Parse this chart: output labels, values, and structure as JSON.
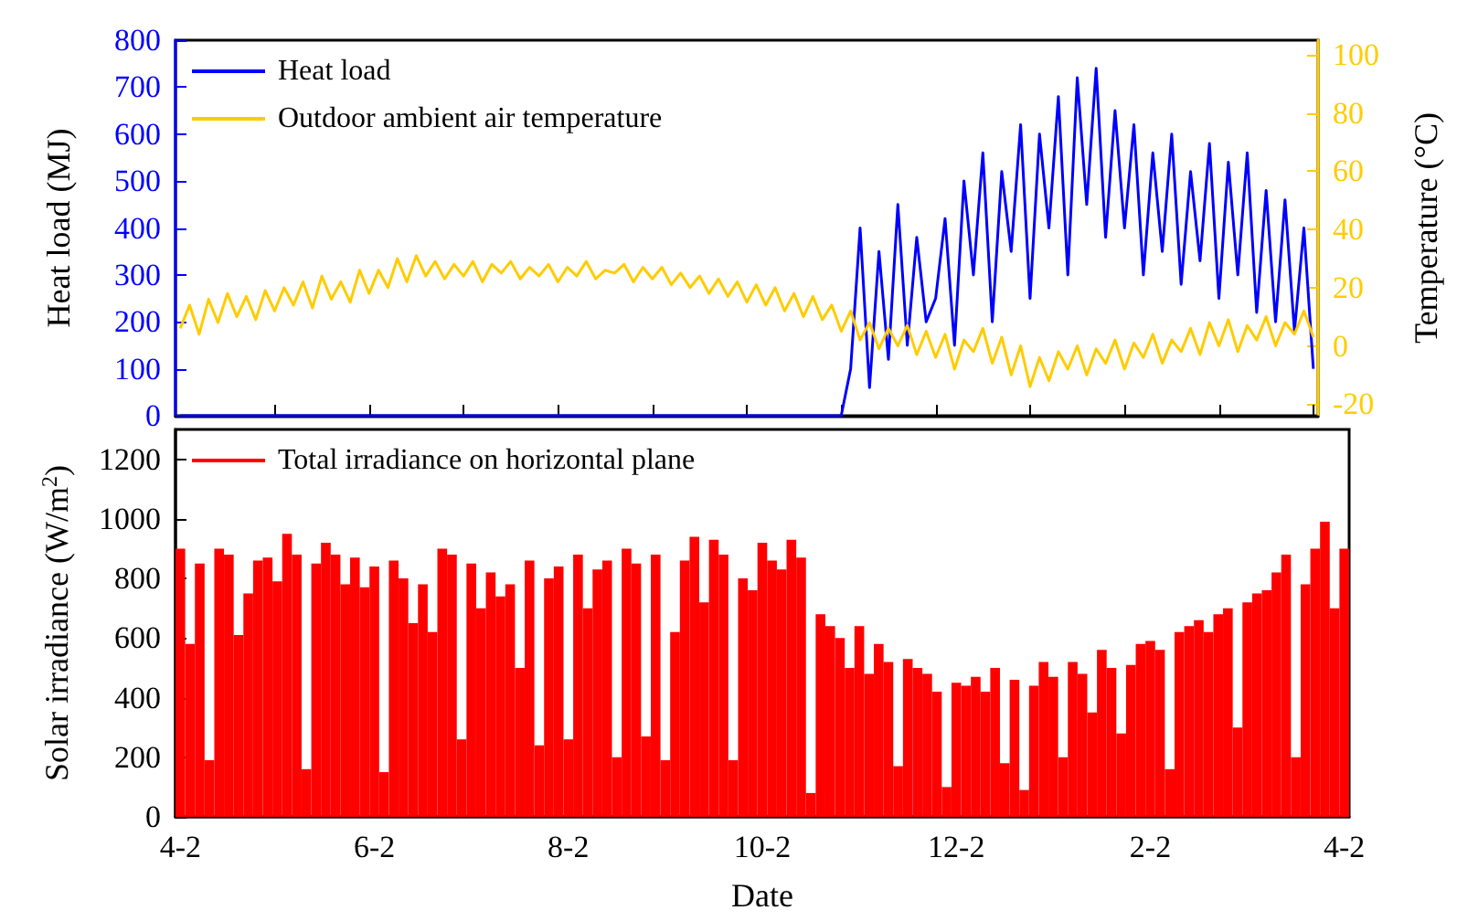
{
  "chart_data": [
    {
      "type": "line",
      "ylabel": "Heat load (MJ)",
      "y2label": "Temperature (°C)",
      "ylim": [
        0,
        800
      ],
      "yticks": [
        0,
        100,
        200,
        300,
        400,
        500,
        600,
        700,
        800
      ],
      "y2lim": [
        -24,
        105
      ],
      "y2ticks": [
        -20,
        0,
        20,
        40,
        60,
        80,
        100
      ],
      "legend": "top left",
      "categories": [
        null,
        null,
        null,
        null,
        null,
        null,
        null,
        null,
        null,
        null,
        null,
        null,
        null,
        null,
        null,
        null,
        null,
        null,
        null,
        null,
        null,
        null,
        null,
        null,
        null,
        null,
        null,
        null,
        null,
        null,
        null,
        null,
        null,
        null,
        null,
        null,
        null,
        null,
        null,
        null,
        null,
        null,
        null,
        null,
        null,
        null,
        null,
        null,
        null,
        null,
        null,
        null,
        null,
        null,
        null,
        null,
        null,
        null,
        null,
        null,
        null,
        null,
        null,
        null,
        null,
        null,
        null,
        null,
        null,
        null,
        null,
        null,
        null,
        null,
        null,
        null,
        null,
        null,
        null,
        null,
        null,
        null,
        null,
        null,
        null,
        null,
        null,
        null,
        null,
        null,
        null,
        null,
        null,
        null,
        null,
        null,
        null,
        null,
        null,
        null,
        null,
        null,
        null,
        null,
        null,
        null,
        null,
        null,
        null,
        null,
        null,
        null,
        null,
        null,
        null,
        null,
        null,
        null,
        null,
        null,
        null
      ],
      "series": [
        {
          "name": "Heat load",
          "color": "#0000ff",
          "values": [
            0,
            0,
            0,
            0,
            0,
            0,
            0,
            0,
            0,
            0,
            0,
            0,
            0,
            0,
            0,
            0,
            0,
            0,
            0,
            0,
            0,
            0,
            0,
            0,
            0,
            0,
            0,
            0,
            0,
            0,
            0,
            0,
            0,
            0,
            0,
            0,
            0,
            0,
            0,
            0,
            0,
            0,
            0,
            0,
            0,
            0,
            0,
            0,
            0,
            0,
            0,
            0,
            0,
            0,
            0,
            0,
            0,
            0,
            0,
            0,
            0,
            0,
            0,
            0,
            0,
            0,
            0,
            0,
            0,
            0,
            0,
            100,
            400,
            60,
            350,
            120,
            450,
            150,
            380,
            200,
            250,
            420,
            150,
            500,
            300,
            560,
            200,
            520,
            350,
            620,
            250,
            600,
            400,
            680,
            300,
            720,
            450,
            740,
            380,
            650,
            400,
            620,
            300,
            560,
            350,
            600,
            280,
            520,
            330,
            580,
            250,
            540,
            300,
            560,
            220,
            480,
            200,
            460,
            180,
            400,
            100
          ]
        },
        {
          "name": "Outdoor ambient air temperature",
          "color": "#ffcc00",
          "axis": "y2",
          "values": [
            6,
            14,
            4,
            16,
            8,
            18,
            10,
            17,
            9,
            19,
            12,
            20,
            14,
            22,
            13,
            24,
            16,
            22,
            15,
            26,
            18,
            26,
            20,
            30,
            22,
            31,
            24,
            29,
            23,
            28,
            24,
            29,
            22,
            28,
            25,
            29,
            23,
            27,
            24,
            28,
            22,
            27,
            24,
            29,
            23,
            26,
            25,
            28,
            22,
            27,
            23,
            27,
            21,
            25,
            20,
            24,
            18,
            23,
            17,
            22,
            15,
            21,
            14,
            20,
            12,
            18,
            10,
            17,
            9,
            14,
            5,
            12,
            2,
            8,
            -1,
            6,
            0,
            7,
            -3,
            5,
            -4,
            4,
            -8,
            2,
            -2,
            6,
            -6,
            3,
            -10,
            0,
            -14,
            -4,
            -12,
            -2,
            -8,
            0,
            -10,
            -1,
            -6,
            2,
            -8,
            1,
            -4,
            4,
            -6,
            2,
            -2,
            6,
            -3,
            8,
            0,
            9,
            -2,
            7,
            2,
            10,
            0,
            8,
            4,
            12,
            3
          ]
        }
      ]
    },
    {
      "type": "bar",
      "xlabel": "Date",
      "ylabel": "Solar irradiance (W/m$^{2}$)",
      "ylim": [
        0,
        1300
      ],
      "yticks": [
        0,
        200,
        400,
        600,
        800,
        1000,
        1200
      ],
      "legend": "top left",
      "categories": [
        "4-2",
        null,
        null,
        null,
        null,
        null,
        null,
        null,
        null,
        null,
        null,
        null,
        null,
        null,
        null,
        null,
        null,
        null,
        null,
        null,
        "6-2",
        null,
        null,
        null,
        null,
        null,
        null,
        null,
        null,
        null,
        null,
        null,
        null,
        null,
        null,
        null,
        null,
        null,
        null,
        null,
        "8-2",
        null,
        null,
        null,
        null,
        null,
        null,
        null,
        null,
        null,
        null,
        null,
        null,
        null,
        null,
        null,
        null,
        null,
        null,
        null,
        "10-2",
        null,
        null,
        null,
        null,
        null,
        null,
        null,
        null,
        null,
        null,
        null,
        null,
        null,
        null,
        null,
        null,
        null,
        null,
        null,
        "12-2",
        null,
        null,
        null,
        null,
        null,
        null,
        null,
        null,
        null,
        null,
        null,
        null,
        null,
        null,
        null,
        null,
        null,
        null,
        null,
        "2-2",
        null,
        null,
        null,
        null,
        null,
        null,
        null,
        null,
        null,
        null,
        null,
        null,
        null,
        null,
        null,
        null,
        null,
        null,
        null,
        "4-2"
      ],
      "series": [
        {
          "name": "Total irradiance on horizontal plane",
          "color": "#ff0000",
          "values": [
            900,
            580,
            850,
            190,
            900,
            880,
            610,
            750,
            860,
            870,
            790,
            950,
            880,
            160,
            850,
            920,
            880,
            780,
            870,
            770,
            840,
            150,
            860,
            800,
            650,
            780,
            620,
            900,
            880,
            260,
            850,
            700,
            820,
            740,
            780,
            500,
            860,
            240,
            800,
            840,
            260,
            880,
            700,
            830,
            860,
            200,
            900,
            850,
            270,
            880,
            190,
            620,
            860,
            940,
            720,
            930,
            880,
            190,
            800,
            760,
            920,
            860,
            830,
            930,
            870,
            80,
            680,
            640,
            600,
            500,
            640,
            480,
            580,
            520,
            170,
            530,
            500,
            480,
            420,
            100,
            450,
            440,
            470,
            420,
            500,
            180,
            460,
            90,
            440,
            520,
            470,
            200,
            520,
            480,
            350,
            560,
            500,
            280,
            510,
            580,
            590,
            560,
            160,
            620,
            640,
            660,
            620,
            680,
            700,
            300,
            720,
            750,
            760,
            820,
            880,
            200,
            780,
            900,
            990,
            700,
            900
          ]
        }
      ]
    }
  ]
}
